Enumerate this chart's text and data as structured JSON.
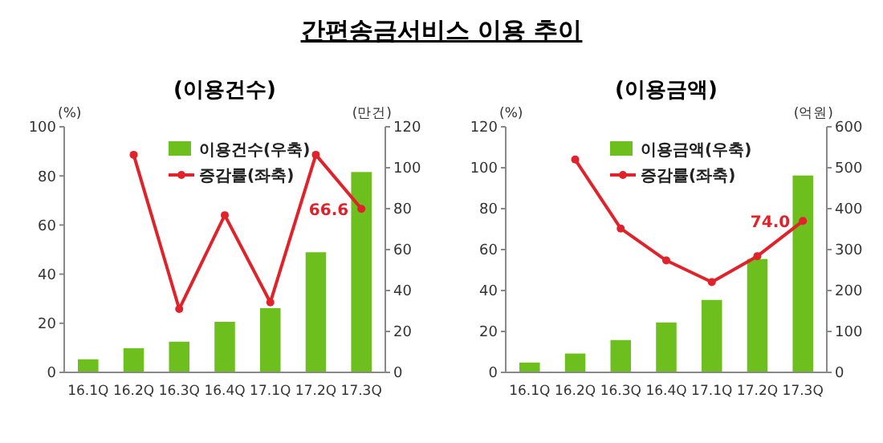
{
  "chart_data": [
    {
      "type": "bar",
      "title": "간편송금서비스 이용 추이",
      "subtitle": "(이용건수)",
      "ylabel": "(%)",
      "y2label": "(만건)",
      "categories": [
        "16.1Q",
        "16.2Q",
        "16.3Q",
        "16.4Q",
        "17.1Q",
        "17.2Q",
        "17.3Q"
      ],
      "series": [
        {
          "name": "이용건수(우축)",
          "axis": "y2",
          "color": "#6cbf1c",
          "values": [
            6.4,
            11.8,
            15,
            24.7,
            31.4,
            58.7,
            97.9
          ]
        },
        {
          "name": "증감률(좌축)",
          "type": "line",
          "color": "#e0222a",
          "marker": "circle",
          "values": [
            null,
            88.6,
            25.8,
            64,
            28.5,
            88.6,
            66.6
          ],
          "value_labels": [
            null,
            null,
            null,
            null,
            null,
            null,
            "66.6"
          ]
        }
      ],
      "ylim": [
        0,
        100
      ],
      "yticks": [
        0,
        20,
        40,
        60,
        80,
        100
      ],
      "y2lim": [
        0,
        120
      ],
      "y2ticks": [
        0,
        20,
        40,
        60,
        80,
        100,
        120
      ],
      "legend": "top",
      "grid": false
    },
    {
      "type": "bar",
      "subtitle": "(이용금액)",
      "ylabel": "(%)",
      "y2label": "(억원)",
      "categories": [
        "16.1Q",
        "16.2Q",
        "16.3Q",
        "16.4Q",
        "17.1Q",
        "17.2Q",
        "17.3Q"
      ],
      "series": [
        {
          "name": "이용금액(우축)",
          "axis": "y2",
          "color": "#6cbf1c",
          "values": [
            24,
            46,
            79,
            122,
            177,
            277,
            481
          ]
        },
        {
          "name": "증감률(좌축)",
          "type": "line",
          "color": "#e0222a",
          "marker": "circle",
          "values": [
            null,
            104,
            70.3,
            54.7,
            44.1,
            56.8,
            74.0
          ],
          "value_labels": [
            null,
            null,
            null,
            null,
            null,
            null,
            "74.0"
          ]
        }
      ],
      "ylim": [
        0,
        120
      ],
      "yticks": [
        0,
        20,
        40,
        60,
        80,
        100,
        120
      ],
      "y2lim": [
        0,
        600
      ],
      "y2ticks": [
        0,
        100,
        200,
        300,
        400,
        500,
        600
      ],
      "legend": "top",
      "grid": false
    }
  ]
}
